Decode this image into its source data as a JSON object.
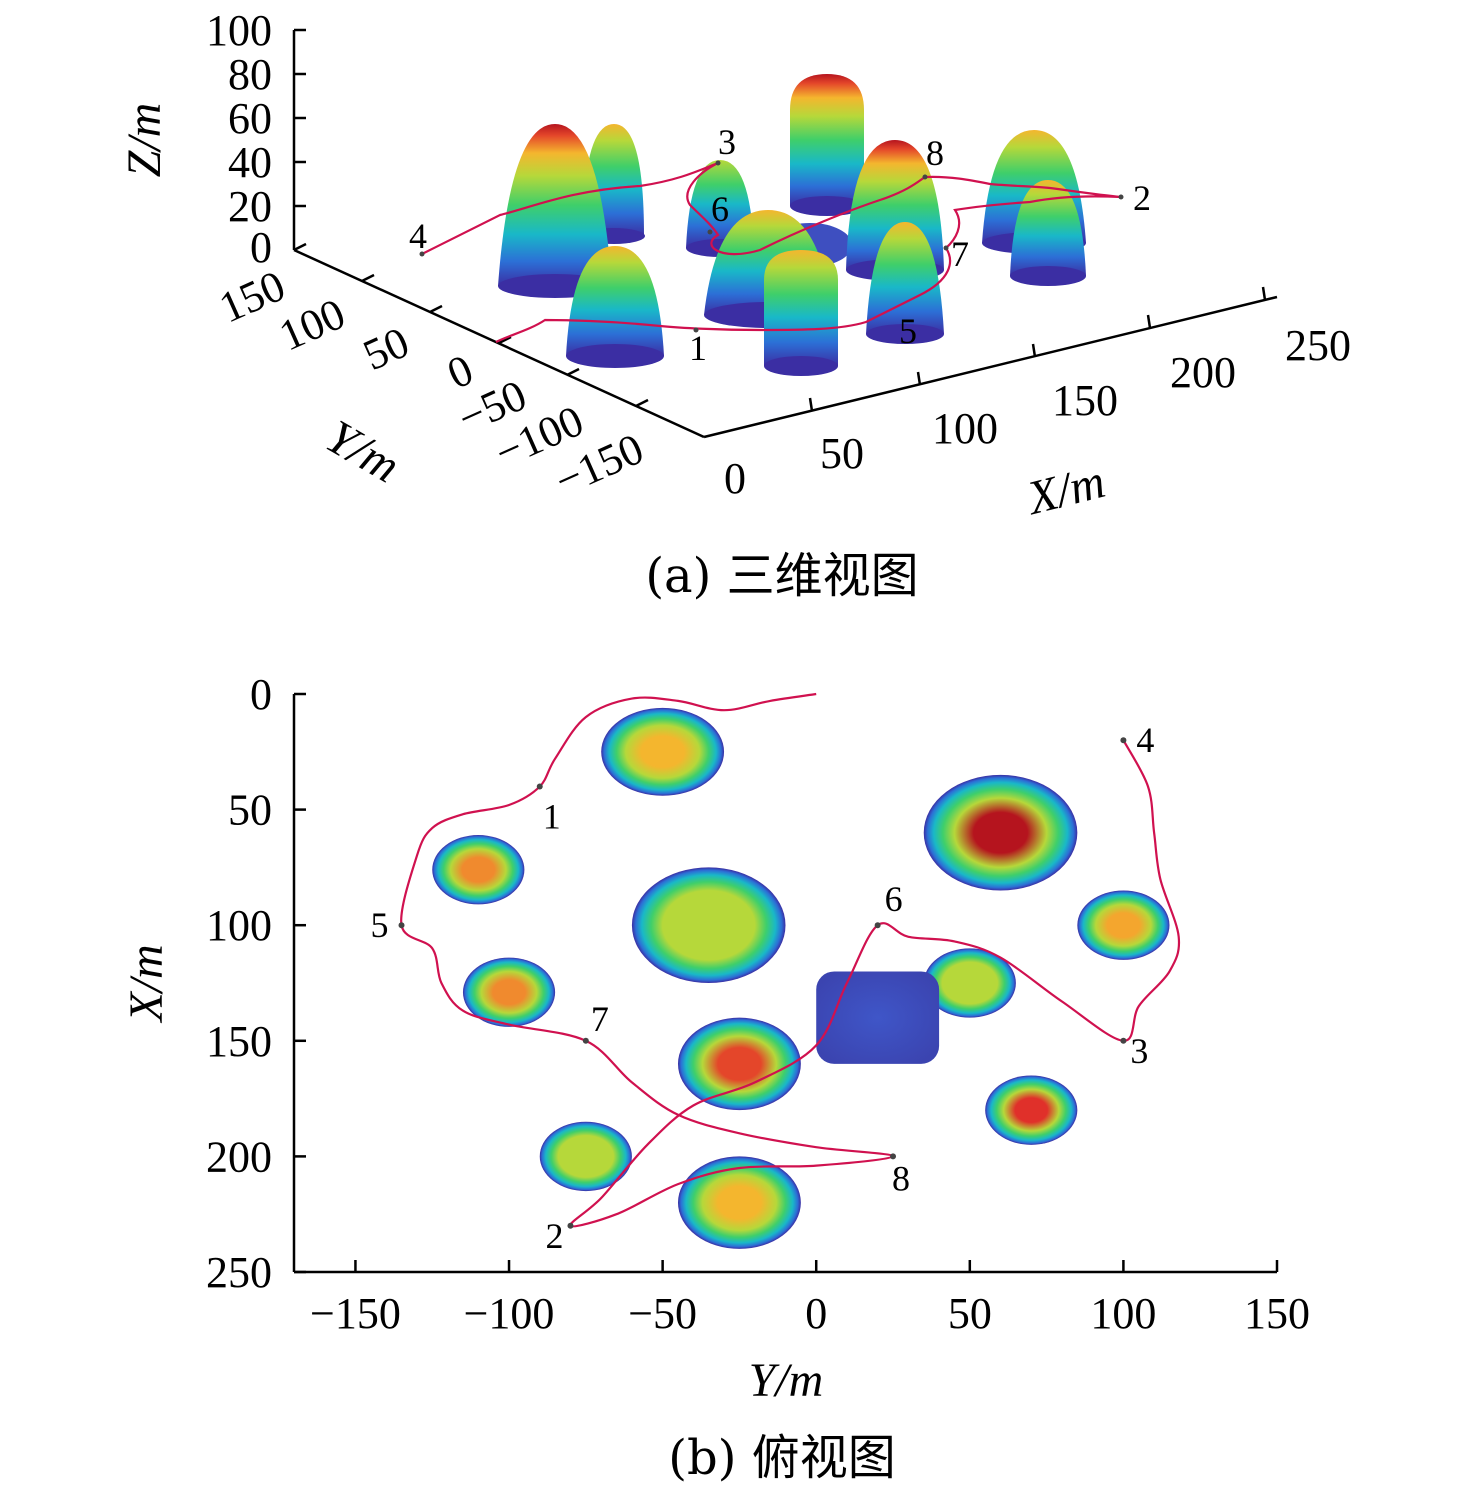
{
  "chart_data": [
    {
      "type": "surface3d",
      "caption": "(a) 三维视图",
      "xlabel": "X/m",
      "ylabel": "Y/m",
      "zlabel": "Z/m",
      "xticks": [
        "0",
        "50",
        "100",
        "150",
        "200",
        "250"
      ],
      "yticks": [
        "150",
        "100",
        "50",
        "0",
        "−50",
        "−100",
        "−150"
      ],
      "zticks": [
        "100",
        "80",
        "60",
        "40",
        "20",
        "0"
      ],
      "waypoints": [
        "1",
        "2",
        "3",
        "4",
        "5",
        "6",
        "7",
        "8"
      ],
      "colormap": [
        "#3b2ea3",
        "#2c6fd6",
        "#19b8c8",
        "#3fcf6a",
        "#b6d83a",
        "#f4b62e",
        "#e4462a",
        "#b5141e"
      ]
    },
    {
      "type": "heatmap",
      "caption": "(b) 俯视图",
      "xlabel": "Y/m",
      "ylabel": "X/m",
      "xlim": [
        -170,
        150
      ],
      "ylim": [
        0,
        250
      ],
      "xticks": [
        "−150",
        "−100",
        "−50",
        "0",
        "50",
        "100",
        "150"
      ],
      "yticks": [
        "0",
        "50",
        "100",
        "150",
        "200",
        "250"
      ],
      "obstacles": [
        {
          "y": -50,
          "x": 25,
          "ry": 20,
          "rx": 19,
          "peak": "#f4b62e"
        },
        {
          "y": -110,
          "x": 76,
          "ry": 15,
          "rx": 15,
          "peak": "#f08a2e"
        },
        {
          "y": -35,
          "x": 100,
          "ry": 25,
          "rx": 25,
          "peak": "#b6d83a"
        },
        {
          "y": -100,
          "x": 129,
          "ry": 15,
          "rx": 15,
          "peak": "#f08a2e"
        },
        {
          "y": -25,
          "x": 160,
          "ry": 20,
          "rx": 20,
          "peak": "#e4462a"
        },
        {
          "y": -75,
          "x": 200,
          "ry": 15,
          "rx": 15,
          "peak": "#b6d83a"
        },
        {
          "y": -25,
          "x": 220,
          "ry": 20,
          "rx": 20,
          "peak": "#f4b62e"
        },
        {
          "y": 60,
          "x": 60,
          "ry": 25,
          "rx": 25,
          "peak": "#b5141e"
        },
        {
          "y": 100,
          "x": 100,
          "ry": 15,
          "rx": 15,
          "peak": "#f4a62e"
        },
        {
          "y": 50,
          "x": 125,
          "ry": 15,
          "rx": 15,
          "peak": "#b6d83a"
        },
        {
          "y": 70,
          "x": 180,
          "ry": 15,
          "rx": 15,
          "peak": "#e0302a"
        },
        {
          "y": 20,
          "x": 140,
          "ry": 20,
          "rx": 20,
          "peak": "#3f56c8",
          "shape": "square"
        }
      ],
      "waypoints": [
        {
          "label": "1",
          "y": -90,
          "x": 40
        },
        {
          "label": "2",
          "y": -80,
          "x": 230
        },
        {
          "label": "3",
          "y": 100,
          "x": 150
        },
        {
          "label": "4",
          "y": 100,
          "x": 20
        },
        {
          "label": "5",
          "y": -135,
          "x": 100
        },
        {
          "label": "6",
          "y": 20,
          "x": 100
        },
        {
          "label": "7",
          "y": -75,
          "x": 150
        },
        {
          "label": "8",
          "y": 25,
          "x": 200
        }
      ],
      "path": [
        {
          "y": 0,
          "x": 0
        },
        {
          "y": -15,
          "x": 3
        },
        {
          "y": -30,
          "x": 7
        },
        {
          "y": -45,
          "x": 3
        },
        {
          "y": -60,
          "x": 2
        },
        {
          "y": -75,
          "x": 10
        },
        {
          "y": -85,
          "x": 28
        },
        {
          "y": -90,
          "x": 40
        },
        {
          "y": -100,
          "x": 48
        },
        {
          "y": -115,
          "x": 52
        },
        {
          "y": -125,
          "x": 58
        },
        {
          "y": -130,
          "x": 70
        },
        {
          "y": -135,
          "x": 100
        },
        {
          "y": -125,
          "x": 110
        },
        {
          "y": -122,
          "x": 125
        },
        {
          "y": -115,
          "x": 137
        },
        {
          "y": -100,
          "x": 143
        },
        {
          "y": -75,
          "x": 150
        },
        {
          "y": -60,
          "x": 168
        },
        {
          "y": -45,
          "x": 182
        },
        {
          "y": -25,
          "x": 190
        },
        {
          "y": 0,
          "x": 196
        },
        {
          "y": 25,
          "x": 200
        },
        {
          "y": 0,
          "x": 204
        },
        {
          "y": -25,
          "x": 205
        },
        {
          "y": -45,
          "x": 212
        },
        {
          "y": -65,
          "x": 225
        },
        {
          "y": -80,
          "x": 230
        },
        {
          "y": -70,
          "x": 218
        },
        {
          "y": -55,
          "x": 195
        },
        {
          "y": -40,
          "x": 178
        },
        {
          "y": -20,
          "x": 168
        },
        {
          "y": 0,
          "x": 152
        },
        {
          "y": 10,
          "x": 125
        },
        {
          "y": 20,
          "x": 100
        },
        {
          "y": 30,
          "x": 105
        },
        {
          "y": 45,
          "x": 107
        },
        {
          "y": 60,
          "x": 114
        },
        {
          "y": 80,
          "x": 133
        },
        {
          "y": 100,
          "x": 150
        },
        {
          "y": 105,
          "x": 135
        },
        {
          "y": 115,
          "x": 120
        },
        {
          "y": 118,
          "x": 105
        },
        {
          "y": 112,
          "x": 80
        },
        {
          "y": 110,
          "x": 60
        },
        {
          "y": 108,
          "x": 40
        },
        {
          "y": 100,
          "x": 20
        }
      ]
    }
  ]
}
